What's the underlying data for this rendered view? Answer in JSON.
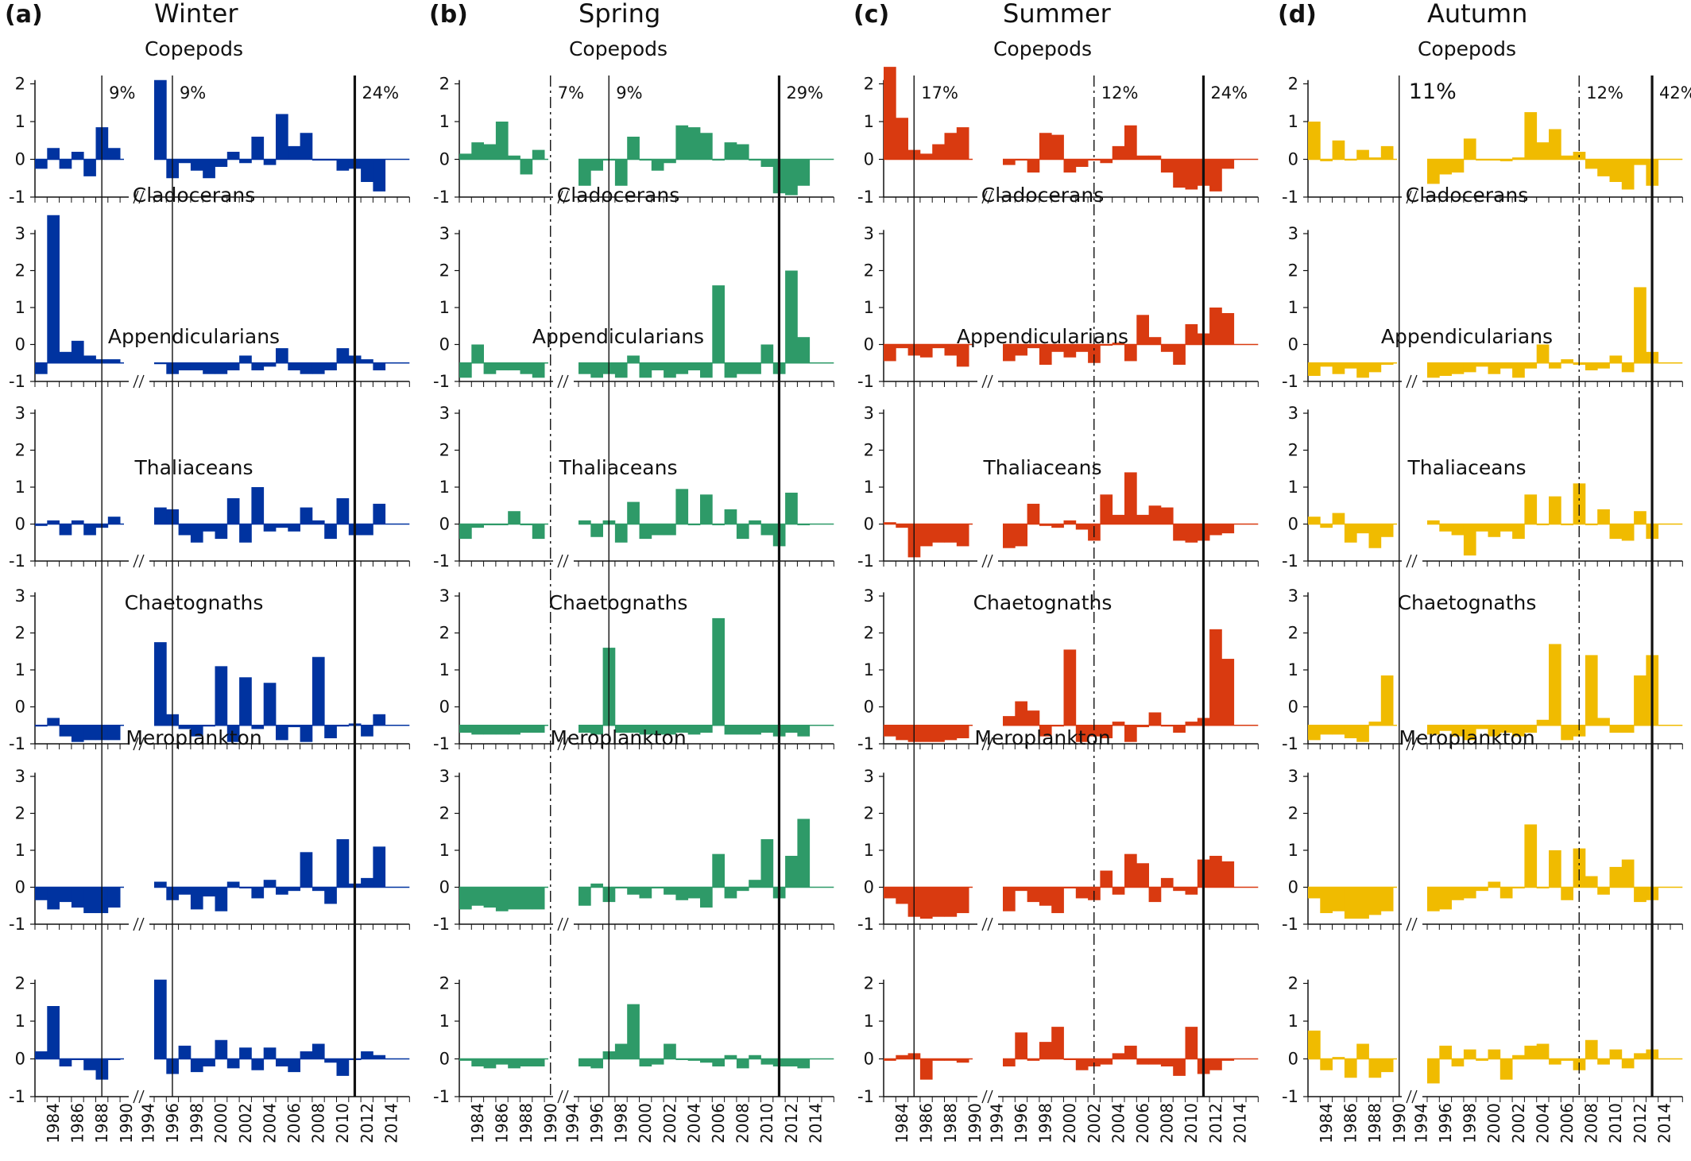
{
  "columns": [
    {
      "letter": "(a)",
      "season": "Winter",
      "color": "#0033a0"
    },
    {
      "letter": "(b)",
      "season": "Spring",
      "color": "#2e9a68"
    },
    {
      "letter": "(c)",
      "season": "Summer",
      "color": "#d93a10"
    },
    {
      "letter": "(d)",
      "season": "Autumn",
      "color": "#f0bb00"
    }
  ],
  "taxa": [
    "Copepods",
    "Cladocerans",
    "Appendicularians",
    "Thaliaceans",
    "Chaetognaths",
    "Meroplankton"
  ],
  "percent_labels": [
    [
      "9%",
      "9%",
      "24%"
    ],
    [
      "7%",
      "9%",
      "29%"
    ],
    [
      "17%",
      "12%",
      "24%"
    ],
    [
      "11%",
      "12%",
      "42%"
    ]
  ],
  "y_ticks": {
    "short": [
      "2",
      "1",
      "0",
      "-1"
    ],
    "tall": [
      "3",
      "2",
      "1",
      "0",
      "-1"
    ]
  },
  "year_labels": [
    "1984",
    "1986",
    "1988",
    "1990",
    "1994",
    "1996",
    "1998",
    "2000",
    "2002",
    "2004",
    "2006",
    "2008",
    "2010",
    "2012",
    "2014"
  ],
  "chart_data": {
    "type": "bar",
    "description_axes": "Standardized anomaly per year; x axis broken between 1990 and 1994",
    "years_block1": [
      1983,
      1984,
      1985,
      1986,
      1987,
      1988,
      1989,
      1990
    ],
    "years_block2": [
      1995,
      1996,
      1997,
      1998,
      1999,
      2000,
      2001,
      2002,
      2003,
      2004,
      2005,
      2006,
      2007,
      2008,
      2009,
      2010,
      2011,
      2012,
      2013,
      2014,
      2015
    ],
    "ylim_short": [
      -1,
      2.5
    ],
    "ylim_tall": [
      -1,
      3.6
    ],
    "shifts": [
      {
        "lines": [
          {
            "year": 1988.5,
            "style": "thin"
          },
          {
            "year": 1996.5,
            "style": "thin"
          },
          {
            "year": 2011.5,
            "style": "thick"
          }
        ]
      },
      {
        "lines": [
          {
            "year": 1990.5,
            "style": "dashdot"
          },
          {
            "year": 1997.5,
            "style": "thin"
          },
          {
            "year": 2011.5,
            "style": "thick"
          }
        ]
      },
      {
        "lines": [
          {
            "year": 1985.5,
            "style": "thin"
          },
          {
            "year": 2002.5,
            "style": "dashdot"
          },
          {
            "year": 2011.5,
            "style": "thick"
          }
        ]
      },
      {
        "lines": [
          {
            "year": 1990.5,
            "style": "thin"
          },
          {
            "year": 2007.5,
            "style": "dashdot"
          },
          {
            "year": 2013.5,
            "style": "thick"
          }
        ]
      }
    ],
    "series": [
      [
        {
          "taxon": "Copepods",
          "scale": "short",
          "baseline": 0,
          "values": [
            -0.25,
            0.3,
            -0.25,
            0.2,
            -0.45,
            0.85,
            0.3,
            null,
            2.1,
            -0.5,
            -0.1,
            -0.3,
            -0.5,
            -0.2,
            0.2,
            -0.1,
            0.6,
            -0.15,
            1.2,
            0.35,
            0.7,
            0.0,
            0.0,
            -0.3,
            -0.25,
            -0.6,
            -0.85
          ]
        },
        {
          "taxon": "Cladocerans",
          "scale": "tall",
          "baseline": -0.5,
          "values": [
            -0.8,
            3.5,
            -0.2,
            0.1,
            -0.3,
            -0.4,
            -0.4,
            null,
            -0.5,
            -0.8,
            -0.7,
            -0.7,
            -0.8,
            -0.8,
            -0.7,
            -0.3,
            -0.7,
            -0.6,
            -0.1,
            -0.7,
            -0.8,
            -0.8,
            -0.7,
            -0.1,
            -0.3,
            -0.4,
            -0.7
          ]
        },
        {
          "taxon": "Appendicularians",
          "scale": "tall",
          "baseline": 0,
          "values": [
            -0.05,
            0.1,
            -0.3,
            0.1,
            -0.3,
            -0.1,
            0.2,
            null,
            0.45,
            0.4,
            -0.3,
            -0.5,
            -0.2,
            -0.4,
            0.7,
            -0.5,
            1.0,
            -0.2,
            -0.1,
            -0.2,
            0.45,
            0.1,
            -0.4,
            0.7,
            -0.3,
            -0.3,
            0.55
          ]
        },
        {
          "taxon": "Thaliaceans",
          "scale": "tall",
          "baseline": -0.5,
          "values": [
            -0.5,
            -0.3,
            -0.8,
            -0.95,
            -0.9,
            -0.9,
            -0.9,
            null,
            1.75,
            -0.2,
            -0.6,
            -0.8,
            -0.5,
            1.1,
            -0.95,
            0.8,
            -0.6,
            0.65,
            -0.9,
            -0.55,
            -0.95,
            1.35,
            -0.85,
            -0.5,
            -0.45,
            -0.8,
            -0.2
          ]
        },
        {
          "taxon": "Chaetognaths",
          "scale": "tall",
          "baseline": 0,
          "values": [
            -0.35,
            -0.6,
            -0.4,
            -0.55,
            -0.7,
            -0.7,
            -0.55,
            null,
            0.15,
            -0.35,
            -0.2,
            -0.6,
            -0.25,
            -0.65,
            0.15,
            0.0,
            -0.3,
            0.2,
            -0.2,
            -0.1,
            0.95,
            -0.1,
            -0.45,
            1.3,
            0.1,
            0.25,
            1.1
          ]
        },
        {
          "taxon": "Meroplankton",
          "scale": "short",
          "baseline": 0,
          "values": [
            0.2,
            1.4,
            -0.2,
            0.0,
            -0.3,
            -0.55,
            0.0,
            null,
            2.1,
            -0.4,
            0.35,
            -0.35,
            -0.2,
            0.5,
            -0.25,
            0.3,
            -0.3,
            0.3,
            -0.2,
            -0.35,
            0.2,
            0.4,
            -0.1,
            -0.45,
            0.0,
            0.2,
            0.1
          ]
        }
      ],
      [
        {
          "taxon": "Copepods",
          "scale": "short",
          "baseline": 0,
          "values": [
            0.15,
            0.45,
            0.4,
            1.0,
            0.1,
            -0.4,
            0.25,
            null,
            -0.7,
            -0.3,
            0.0,
            -0.7,
            0.6,
            0.0,
            -0.3,
            -0.1,
            0.9,
            0.85,
            0.7,
            0.0,
            0.45,
            0.4,
            0.0,
            -0.2,
            -0.9,
            -0.95,
            -0.7
          ]
        },
        {
          "taxon": "Cladocerans",
          "scale": "tall",
          "baseline": -0.5,
          "values": [
            -0.9,
            0.0,
            -0.8,
            -0.7,
            -0.7,
            -0.8,
            -0.9,
            null,
            -0.8,
            -0.9,
            -0.8,
            -0.9,
            -0.3,
            -0.9,
            -0.7,
            -0.9,
            -0.8,
            -0.7,
            -0.9,
            1.6,
            -0.9,
            -0.8,
            -0.8,
            0.0,
            -0.8,
            2.0,
            0.2
          ]
        },
        {
          "taxon": "Appendicularians",
          "scale": "tall",
          "baseline": 0,
          "values": [
            -0.4,
            -0.1,
            0.0,
            0.0,
            0.35,
            0.0,
            -0.4,
            null,
            0.1,
            -0.35,
            0.1,
            -0.5,
            0.6,
            -0.4,
            -0.3,
            -0.3,
            0.95,
            0.0,
            0.8,
            0.0,
            0.4,
            -0.4,
            0.1,
            -0.3,
            -0.6,
            0.85,
            0.0
          ]
        },
        {
          "taxon": "Thaliaceans",
          "scale": "tall",
          "baseline": -0.5,
          "values": [
            -0.7,
            -0.75,
            -0.75,
            -0.75,
            -0.75,
            -0.7,
            -0.7,
            null,
            -0.7,
            -0.75,
            1.6,
            -0.7,
            -0.7,
            -0.75,
            -0.75,
            -0.75,
            -0.7,
            -0.75,
            -0.7,
            2.4,
            -0.75,
            -0.75,
            -0.75,
            -0.7,
            -0.8,
            -0.7,
            -0.8
          ]
        },
        {
          "taxon": "Chaetognaths",
          "scale": "tall",
          "baseline": 0,
          "values": [
            -0.6,
            -0.5,
            -0.55,
            -0.65,
            -0.6,
            -0.6,
            -0.6,
            null,
            -0.5,
            0.1,
            -0.4,
            0.0,
            -0.2,
            -0.3,
            0.0,
            -0.2,
            -0.35,
            -0.3,
            -0.55,
            0.9,
            -0.3,
            -0.1,
            0.2,
            1.3,
            -0.3,
            0.85,
            1.85
          ]
        },
        {
          "taxon": "Meroplankton",
          "scale": "short",
          "baseline": 0,
          "values": [
            -0.05,
            -0.2,
            -0.25,
            -0.15,
            -0.25,
            -0.2,
            -0.2,
            null,
            -0.2,
            -0.25,
            0.2,
            0.4,
            1.45,
            -0.2,
            -0.15,
            0.4,
            0.0,
            -0.05,
            -0.1,
            -0.2,
            0.1,
            -0.25,
            0.1,
            -0.15,
            -0.2,
            -0.2,
            -0.25
          ]
        }
      ],
      [
        {
          "taxon": "Copepods",
          "scale": "short",
          "baseline": 0,
          "values": [
            2.45,
            1.1,
            0.25,
            0.15,
            0.4,
            0.7,
            0.85,
            null,
            -0.15,
            0.0,
            -0.35,
            0.7,
            0.65,
            -0.35,
            -0.2,
            0.0,
            -0.1,
            0.35,
            0.9,
            0.1,
            0.1,
            -0.35,
            -0.75,
            -0.8,
            -0.7,
            -0.85,
            -0.25
          ]
        },
        {
          "taxon": "Cladocerans",
          "scale": "tall",
          "baseline": 0,
          "values": [
            -0.45,
            -0.1,
            -0.3,
            -0.35,
            -0.1,
            -0.3,
            -0.6,
            null,
            -0.45,
            -0.3,
            -0.1,
            -0.55,
            -0.2,
            -0.35,
            -0.2,
            -0.5,
            0.0,
            0.05,
            -0.45,
            0.8,
            0.2,
            -0.2,
            -0.55,
            0.55,
            0.3,
            1.0,
            0.85
          ]
        },
        {
          "taxon": "Appendicularians",
          "scale": "tall",
          "baseline": 0,
          "values": [
            0.05,
            -0.1,
            -0.9,
            -0.6,
            -0.5,
            -0.5,
            -0.6,
            null,
            -0.65,
            -0.6,
            0.55,
            -0.05,
            -0.1,
            0.1,
            -0.15,
            -0.45,
            0.8,
            0.25,
            1.4,
            0.25,
            0.5,
            0.45,
            -0.45,
            -0.5,
            -0.45,
            -0.3,
            -0.25
          ]
        },
        {
          "taxon": "Thaliaceans",
          "scale": "tall",
          "baseline": -0.5,
          "values": [
            -0.8,
            -0.9,
            -0.95,
            -0.95,
            -0.95,
            -0.9,
            -0.85,
            null,
            -0.25,
            0.15,
            -0.1,
            -0.8,
            -0.5,
            1.55,
            -0.95,
            -0.8,
            -0.85,
            -0.4,
            -0.95,
            -0.55,
            -0.15,
            -0.5,
            -0.7,
            -0.4,
            -0.3,
            2.1,
            1.3
          ]
        },
        {
          "taxon": "Chaetognaths",
          "scale": "tall",
          "baseline": 0,
          "values": [
            -0.3,
            -0.45,
            -0.8,
            -0.85,
            -0.8,
            -0.8,
            -0.7,
            null,
            -0.65,
            -0.1,
            -0.4,
            -0.5,
            -0.7,
            0.0,
            -0.3,
            -0.35,
            0.45,
            -0.2,
            0.9,
            0.65,
            -0.4,
            0.25,
            -0.1,
            -0.2,
            0.75,
            0.85,
            0.7
          ]
        },
        {
          "taxon": "Meroplankton",
          "scale": "short",
          "baseline": 0,
          "values": [
            -0.05,
            0.1,
            0.15,
            -0.55,
            -0.05,
            -0.05,
            -0.1,
            null,
            -0.2,
            0.7,
            -0.05,
            0.45,
            0.85,
            0.0,
            -0.3,
            -0.2,
            -0.15,
            0.15,
            0.35,
            -0.15,
            -0.15,
            -0.2,
            -0.45,
            0.85,
            -0.4,
            -0.3,
            -0.05
          ]
        }
      ],
      [
        {
          "taxon": "Copepods",
          "scale": "short",
          "baseline": 0,
          "values": [
            1.0,
            -0.05,
            0.5,
            0.0,
            0.25,
            0.05,
            0.35,
            null,
            -0.65,
            -0.4,
            -0.35,
            0.55,
            0.0,
            0.0,
            -0.05,
            0.05,
            1.25,
            0.45,
            0.8,
            0.1,
            0.2,
            -0.25,
            -0.45,
            -0.6,
            -0.8,
            -0.15,
            -0.7
          ]
        },
        {
          "taxon": "Cladocerans",
          "scale": "tall",
          "baseline": -0.5,
          "values": [
            -0.85,
            -0.6,
            -0.8,
            -0.65,
            -0.9,
            -0.75,
            -0.55,
            null,
            -0.9,
            -0.85,
            -0.8,
            -0.75,
            -0.6,
            -0.8,
            -0.65,
            -0.9,
            -0.65,
            0.0,
            -0.65,
            -0.4,
            -0.55,
            -0.7,
            -0.65,
            -0.3,
            -0.75,
            1.55,
            -0.2
          ]
        },
        {
          "taxon": "Appendicularians",
          "scale": "tall",
          "baseline": 0,
          "values": [
            0.2,
            -0.1,
            0.3,
            -0.5,
            -0.25,
            -0.65,
            -0.35,
            null,
            0.1,
            -0.2,
            -0.3,
            -0.85,
            -0.2,
            -0.35,
            -0.2,
            -0.4,
            0.8,
            0.0,
            0.75,
            0.0,
            1.1,
            0.0,
            0.4,
            -0.4,
            -0.45,
            0.35,
            -0.4
          ]
        },
        {
          "taxon": "Thaliaceans",
          "scale": "tall",
          "baseline": -0.5,
          "values": [
            -0.9,
            -0.75,
            -0.75,
            -0.85,
            -0.95,
            -0.4,
            0.85,
            null,
            -0.75,
            -0.65,
            -0.8,
            -0.9,
            -0.6,
            -0.8,
            -0.7,
            -0.8,
            -0.7,
            -0.35,
            1.7,
            -0.9,
            -0.8,
            1.4,
            -0.3,
            -0.7,
            -0.7,
            0.85,
            1.4
          ]
        },
        {
          "taxon": "Chaetognaths",
          "scale": "tall",
          "baseline": 0,
          "values": [
            -0.3,
            -0.7,
            -0.65,
            -0.85,
            -0.85,
            -0.75,
            -0.65,
            null,
            -0.65,
            -0.6,
            -0.35,
            -0.3,
            -0.1,
            0.15,
            -0.3,
            0.0,
            1.7,
            0.0,
            1.0,
            -0.35,
            1.05,
            0.3,
            -0.2,
            0.55,
            0.75,
            -0.4,
            -0.35
          ]
        },
        {
          "taxon": "Meroplankton",
          "scale": "short",
          "baseline": 0,
          "values": [
            0.75,
            -0.3,
            0.05,
            -0.5,
            0.4,
            -0.5,
            -0.35,
            null,
            -0.65,
            0.35,
            -0.2,
            0.25,
            -0.05,
            0.25,
            -0.55,
            0.1,
            0.35,
            0.4,
            -0.15,
            -0.05,
            -0.3,
            0.5,
            -0.15,
            0.25,
            -0.25,
            0.15,
            0.25
          ]
        }
      ]
    ]
  }
}
